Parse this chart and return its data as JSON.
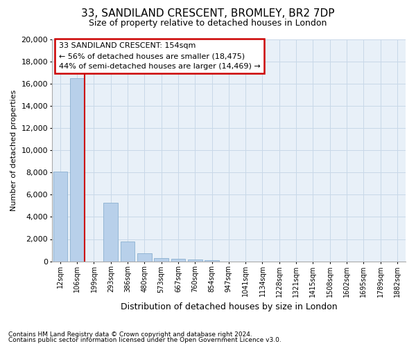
{
  "title": "33, SANDILAND CRESCENT, BROMLEY, BR2 7DP",
  "subtitle": "Size of property relative to detached houses in London",
  "xlabel": "Distribution of detached houses by size in London",
  "ylabel": "Number of detached properties",
  "footnote1": "Contains HM Land Registry data © Crown copyright and database right 2024.",
  "footnote2": "Contains public sector information licensed under the Open Government Licence v3.0.",
  "categories": [
    "12sqm",
    "106sqm",
    "199sqm",
    "293sqm",
    "386sqm",
    "480sqm",
    "573sqm",
    "667sqm",
    "760sqm",
    "854sqm",
    "947sqm",
    "1041sqm",
    "1134sqm",
    "1228sqm",
    "1321sqm",
    "1415sqm",
    "1508sqm",
    "1602sqm",
    "1695sqm",
    "1789sqm",
    "1882sqm"
  ],
  "values": [
    8100,
    16500,
    0,
    5300,
    1800,
    700,
    280,
    200,
    150,
    100,
    0,
    0,
    0,
    0,
    0,
    0,
    0,
    0,
    0,
    0,
    0
  ],
  "bar_color": "#b8d0ea",
  "bar_edge_color": "#8ab0d0",
  "vline_x": 1.5,
  "annotation_line1": "33 SANDILAND CRESCENT: 154sqm",
  "annotation_line2": "← 56% of detached houses are smaller (18,475)",
  "annotation_line3": "44% of semi-detached houses are larger (14,469) →",
  "annotation_box_color": "#cc0000",
  "vline_color": "#cc0000",
  "ylim": [
    0,
    20000
  ],
  "yticks": [
    0,
    2000,
    4000,
    6000,
    8000,
    10000,
    12000,
    14000,
    16000,
    18000,
    20000
  ],
  "grid_color": "#c8d8e8",
  "bg_color": "#e8f0f8",
  "title_fontsize": 11,
  "subtitle_fontsize": 9,
  "xlabel_fontsize": 9,
  "ylabel_fontsize": 8
}
